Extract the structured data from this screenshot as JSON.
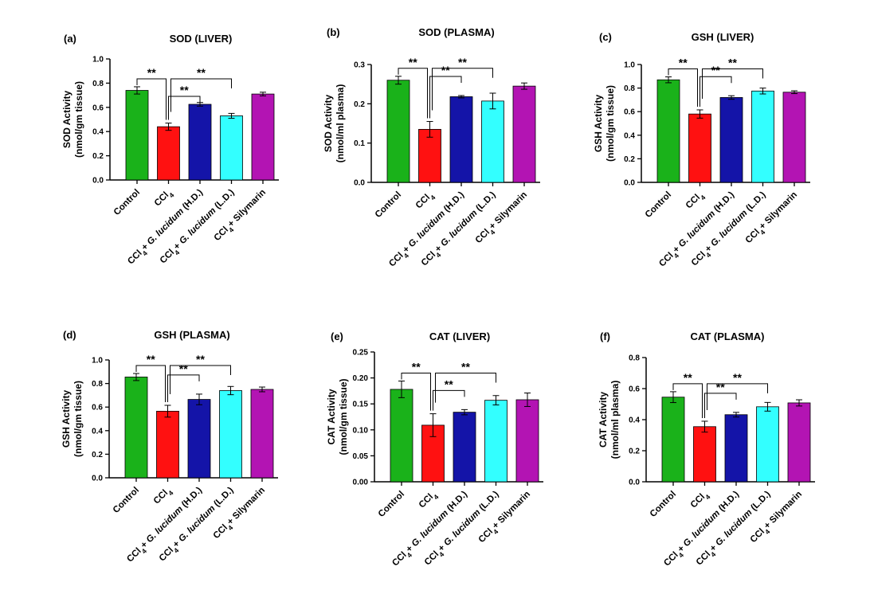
{
  "chart_data": [
    {
      "type": "bar",
      "panel": "(a)",
      "title": "SOD (LIVER)",
      "ylabel": [
        "SOD Activity",
        "(nmol/gm tissue)"
      ],
      "ylim": [
        0,
        1.0
      ],
      "yticks": [
        "0.0",
        "0.2",
        "0.4",
        "0.6",
        "0.8",
        "1.0"
      ],
      "categories": [
        "Control",
        "CCl4",
        "CCl4+ G. lucidum (H.D.)",
        "CCl4+ G. lucidum (L.D.)",
        "CCl4+ Silymarin"
      ],
      "values": [
        0.74,
        0.44,
        0.625,
        0.53,
        0.71
      ],
      "errors": [
        0.03,
        0.03,
        0.015,
        0.02,
        0.015
      ],
      "significance": [
        {
          "from": 1,
          "to": 2,
          "label": "**"
        },
        {
          "from": 0,
          "to": 1,
          "label": "**"
        },
        {
          "from": 1,
          "to": 3,
          "label": "**"
        }
      ]
    },
    {
      "type": "bar",
      "panel": "(b)",
      "title": "SOD (PLASMA)",
      "ylabel": [
        "SOD Activity",
        "(nmol/ml plasma)"
      ],
      "ylim": [
        0,
        0.3
      ],
      "yticks": [
        "0.0",
        "0.1",
        "0.2",
        "0.3"
      ],
      "categories": [
        "Control",
        "CCl4",
        "CCl4+ G. lucidum (H.D.)",
        "CCl4+ G. lucidum (L.D.)",
        "CCl4+ Silymarin"
      ],
      "values": [
        0.26,
        0.135,
        0.218,
        0.207,
        0.245
      ],
      "errors": [
        0.01,
        0.02,
        0.003,
        0.02,
        0.008
      ],
      "significance": [
        {
          "from": 1,
          "to": 2,
          "label": "**"
        },
        {
          "from": 0,
          "to": 1,
          "label": "**"
        },
        {
          "from": 1,
          "to": 3,
          "label": "**"
        }
      ]
    },
    {
      "type": "bar",
      "panel": "(c)",
      "title": "GSH (LIVER)",
      "ylabel": [
        "GSH Activity",
        "(nmol/gm tissue)"
      ],
      "ylim": [
        0,
        1.0
      ],
      "yticks": [
        "0.0",
        "0.2",
        "0.4",
        "0.6",
        "0.8",
        "1.0"
      ],
      "categories": [
        "Control",
        "CCl4",
        "CCl4+ G. lucidum (H.D.)",
        "CCl4+ G. lucidum (L.D.)",
        "CCl4+ Silymarin"
      ],
      "values": [
        0.87,
        0.58,
        0.72,
        0.775,
        0.765
      ],
      "errors": [
        0.025,
        0.035,
        0.015,
        0.025,
        0.012
      ],
      "significance": [
        {
          "from": 1,
          "to": 2,
          "label": "**"
        },
        {
          "from": 0,
          "to": 1,
          "label": "**"
        },
        {
          "from": 1,
          "to": 3,
          "label": "**"
        }
      ]
    },
    {
      "type": "bar",
      "panel": "(d)",
      "title": "GSH (PLASMA)",
      "ylabel": [
        "GSH Activity",
        "(nmol/gm tissue)"
      ],
      "ylim": [
        0,
        1.0
      ],
      "yticks": [
        "0.0",
        "0.2",
        "0.4",
        "0.6",
        "0.8",
        "1.0"
      ],
      "categories": [
        "Control",
        "CCl4",
        "CCl4+ G. lucidum (H.D.)",
        "CCl4+ G. lucidum (L.D.)",
        "CCl4+ Silymarin"
      ],
      "values": [
        0.855,
        0.565,
        0.665,
        0.74,
        0.75
      ],
      "errors": [
        0.03,
        0.05,
        0.045,
        0.035,
        0.02
      ],
      "significance": [
        {
          "from": 1,
          "to": 2,
          "label": "**"
        },
        {
          "from": 0,
          "to": 1,
          "label": "**"
        },
        {
          "from": 1,
          "to": 3,
          "label": "**"
        }
      ]
    },
    {
      "type": "bar",
      "panel": "(e)",
      "title": "CAT (LIVER)",
      "ylabel": [
        "CAT Activity",
        "(nmol/gm tissue)"
      ],
      "ylim": [
        0,
        0.25
      ],
      "yticks": [
        "0.00",
        "0.05",
        "0.10",
        "0.15",
        "0.20",
        "0.25"
      ],
      "categories": [
        "Control",
        "CCl4",
        "CCl4+ G. lucidum (H.D.)",
        "CCl4+ G. lucidum (L.D.)",
        "CCl4+ Silymarin"
      ],
      "values": [
        0.178,
        0.109,
        0.134,
        0.157,
        0.158
      ],
      "errors": [
        0.016,
        0.022,
        0.005,
        0.009,
        0.013
      ],
      "significance": [
        {
          "from": 1,
          "to": 2,
          "label": "**"
        },
        {
          "from": 0,
          "to": 1,
          "label": "**"
        },
        {
          "from": 1,
          "to": 3,
          "label": "**"
        }
      ]
    },
    {
      "type": "bar",
      "panel": "(f)",
      "title": "CAT (PLASMA)",
      "ylabel": [
        "CAT Activity",
        "(nmol/ml plasma)"
      ],
      "ylim": [
        0,
        0.8
      ],
      "yticks": [
        "0.0",
        "0.2",
        "0.4",
        "0.6",
        "0.8"
      ],
      "categories": [
        "Control",
        "CCl4",
        "CCl4+ G. lucidum (H.D.)",
        "CCl4+ G. lucidum (L.D.)",
        "CCl4+ Silymarin"
      ],
      "values": [
        0.545,
        0.355,
        0.432,
        0.483,
        0.508
      ],
      "errors": [
        0.035,
        0.035,
        0.015,
        0.028,
        0.02
      ],
      "significance": [
        {
          "from": 1,
          "to": 2,
          "label": "**"
        },
        {
          "from": 0,
          "to": 1,
          "label": "**"
        },
        {
          "from": 1,
          "to": 3,
          "label": "**"
        }
      ]
    }
  ],
  "colors": [
    "#1ab21a",
    "#ff1111",
    "#1414a8",
    "#33ffff",
    "#b314b3"
  ]
}
